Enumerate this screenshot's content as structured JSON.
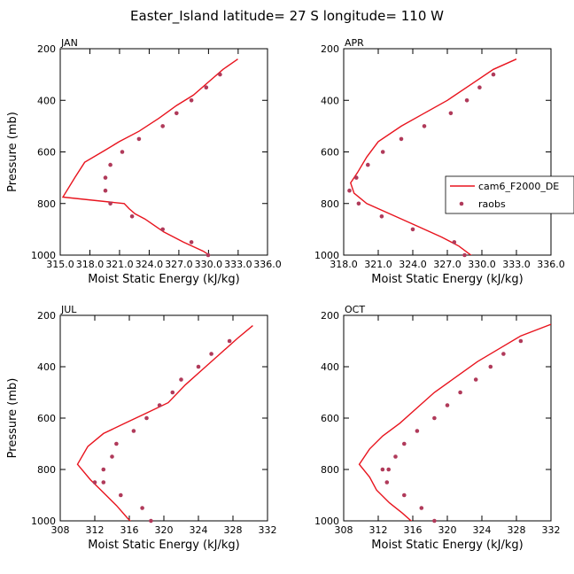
{
  "figure": {
    "title": "Easter_Island  latitude= 27 S longitude= 110 W"
  },
  "colors": {
    "model": "#e8141e",
    "obs": "#b03a5a",
    "axis": "#000000"
  },
  "legend": {
    "model_label": "cam6_F2000_DE",
    "obs_label": "raobs",
    "placement": "right of APR panel"
  },
  "chart_data": [
    {
      "type": "line",
      "panel": "JAN",
      "xlabel": "Moist Static Energy (kJ/kg)",
      "ylabel": "Pressure (mb)",
      "xlim": [
        315.03,
        336.0
      ],
      "ylim": [
        1000,
        200
      ],
      "y_reversed": true,
      "xticks": [
        315.03,
        318.03,
        321.03,
        324.03,
        327.03,
        330.03,
        333.03,
        336.0
      ],
      "xtick_labels": [
        "315.0",
        "318.0",
        "321.0",
        "324.0",
        "327.0",
        "330.0",
        "333.0",
        "336.0"
      ],
      "yticks": [
        200,
        400,
        600,
        800,
        1000
      ],
      "ytick_labels": [
        "200",
        "400",
        "600",
        "800",
        "1000"
      ],
      "series": [
        {
          "name": "cam6_F2000_DE",
          "kind": "line",
          "x": [
            333.0,
            331.5,
            330.0,
            328.5,
            326.8,
            325.0,
            323.0,
            321.0,
            319.5,
            317.5,
            316.5,
            315.3,
            321.5,
            322.0,
            322.6,
            323.6,
            325.5,
            327.5,
            329.5,
            330.5
          ],
          "y": [
            240,
            280,
            330,
            380,
            420,
            470,
            520,
            560,
            595,
            640,
            700,
            775,
            800,
            820,
            840,
            860,
            910,
            950,
            985,
            1010
          ]
        },
        {
          "name": "raobs",
          "kind": "scatter",
          "x": [
            331.2,
            329.8,
            328.3,
            326.8,
            325.4,
            323.0,
            321.3,
            320.1,
            319.6,
            319.6,
            320.1,
            322.3,
            325.4,
            328.3,
            330.0
          ],
          "y": [
            300,
            350,
            400,
            450,
            500,
            550,
            600,
            650,
            700,
            750,
            800,
            850,
            900,
            950,
            1000
          ]
        }
      ]
    },
    {
      "type": "line",
      "panel": "APR",
      "xlabel": "Moist Static Energy (kJ/kg)",
      "ylabel": "",
      "xlim": [
        318.0,
        336.0
      ],
      "ylim": [
        1000,
        200
      ],
      "y_reversed": true,
      "xticks": [
        318.0,
        321.0,
        324.0,
        327.0,
        330.0,
        333.0,
        336.0
      ],
      "xtick_labels": [
        "318.0",
        "321.0",
        "324.0",
        "327.0",
        "330.0",
        "333.0",
        "336.0"
      ],
      "yticks": [
        200,
        400,
        600,
        800,
        1000
      ],
      "ytick_labels": [
        "200",
        "400",
        "600",
        "800",
        "1000"
      ],
      "series": [
        {
          "name": "cam6_F2000_DE",
          "kind": "line",
          "x": [
            333.0,
            331.0,
            329.0,
            327.0,
            325.0,
            323.0,
            321.0,
            320.0,
            319.2,
            318.6,
            318.9,
            320.0,
            322.0,
            324.0,
            326.5,
            328.0,
            329.2
          ],
          "y": [
            240,
            280,
            340,
            400,
            450,
            500,
            560,
            620,
            680,
            720,
            760,
            800,
            840,
            880,
            930,
            965,
            1005
          ]
        },
        {
          "name": "raobs",
          "kind": "scatter",
          "x": [
            331.0,
            329.8,
            328.7,
            327.3,
            325.0,
            323.0,
            321.4,
            320.1,
            319.1,
            318.5,
            319.3,
            321.3,
            324.0,
            327.6,
            328.5
          ],
          "y": [
            300,
            350,
            400,
            450,
            500,
            550,
            600,
            650,
            700,
            750,
            800,
            850,
            900,
            950,
            1000
          ]
        }
      ]
    },
    {
      "type": "line",
      "panel": "JUL",
      "xlabel": "Moist Static Energy (kJ/kg)",
      "ylabel": "Pressure (mb)",
      "xlim": [
        308,
        332
      ],
      "ylim": [
        1000,
        200
      ],
      "y_reversed": true,
      "xticks": [
        308,
        312,
        316,
        320,
        324,
        328,
        332
      ],
      "xtick_labels": [
        "308",
        "312",
        "316",
        "320",
        "324",
        "328",
        "332"
      ],
      "yticks": [
        200,
        400,
        600,
        800,
        1000
      ],
      "ytick_labels": [
        "200",
        "400",
        "600",
        "800",
        "1000"
      ],
      "series": [
        {
          "name": "cam6_F2000_DE",
          "kind": "line",
          "x": [
            330.3,
            328.5,
            326.5,
            324.5,
            322.5,
            320.5,
            318.0,
            315.5,
            313.0,
            311.2,
            310.0,
            311.5,
            313.0,
            314.5,
            315.8,
            316.4
          ],
          "y": [
            240,
            290,
            350,
            410,
            470,
            540,
            580,
            620,
            660,
            710,
            780,
            840,
            890,
            940,
            990,
            1010
          ]
        },
        {
          "name": "raobs",
          "kind": "scatter",
          "x": [
            327.6,
            325.5,
            324.0,
            322.0,
            321.0,
            319.5,
            318.0,
            316.5,
            314.5,
            314.0,
            313.0,
            312.0,
            313.0,
            315.0,
            317.5,
            318.5
          ],
          "y": [
            300,
            350,
            400,
            450,
            500,
            550,
            600,
            650,
            700,
            750,
            800,
            850,
            850,
            900,
            950,
            1000
          ]
        }
      ]
    },
    {
      "type": "line",
      "panel": "OCT",
      "xlabel": "Moist Static Energy (kJ/kg)",
      "ylabel": "",
      "xlim": [
        308,
        332
      ],
      "ylim": [
        1000,
        200
      ],
      "y_reversed": true,
      "xticks": [
        308,
        312,
        316,
        320,
        324,
        328,
        332
      ],
      "xtick_labels": [
        "308",
        "312",
        "316",
        "320",
        "324",
        "328",
        "332"
      ],
      "yticks": [
        200,
        400,
        600,
        800,
        1000
      ],
      "ytick_labels": [
        "200",
        "400",
        "600",
        "800",
        "1000"
      ],
      "series": [
        {
          "name": "cam6_F2000_DE",
          "kind": "line",
          "x": [
            332.0,
            328.5,
            326.0,
            323.5,
            321.0,
            318.5,
            316.5,
            314.5,
            312.5,
            311.0,
            309.8,
            311.0,
            311.8,
            313.3,
            314.8,
            315.8,
            316.5
          ],
          "y": [
            235,
            280,
            330,
            380,
            440,
            500,
            560,
            620,
            670,
            720,
            780,
            830,
            880,
            930,
            970,
            1000,
            1015
          ]
        },
        {
          "name": "raobs",
          "kind": "scatter",
          "x": [
            328.5,
            326.5,
            325.0,
            323.3,
            321.5,
            320.0,
            318.5,
            316.5,
            315.0,
            314.0,
            313.2,
            312.5,
            313.0,
            315.0,
            317.0,
            318.5
          ],
          "y": [
            300,
            350,
            400,
            450,
            500,
            550,
            600,
            650,
            700,
            750,
            800,
            800,
            850,
            900,
            950,
            1000
          ]
        }
      ]
    }
  ]
}
